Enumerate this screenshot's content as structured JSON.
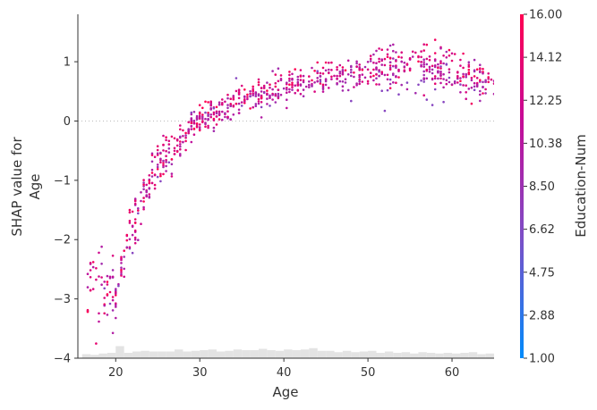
{
  "chart_data": {
    "type": "scatter",
    "title": "",
    "xlabel": "Age",
    "ylabel_line1": "SHAP value for",
    "ylabel_line2": "Age",
    "xlim": [
      15.5,
      65
    ],
    "ylim": [
      -4,
      1.8
    ],
    "xticks": [
      20,
      30,
      40,
      50,
      60
    ],
    "yticks": [
      -4,
      -3,
      -2,
      -1,
      0,
      1
    ],
    "ytick_labels": [
      "−4",
      "−3",
      "−2",
      "−1",
      "0",
      "1"
    ],
    "zero_line": true,
    "colorbar": {
      "label": "Education-Num",
      "min": 1.0,
      "max": 16.0,
      "tick_labels": [
        "1.00",
        "2.88",
        "4.75",
        "6.62",
        "8.50",
        "10.38",
        "12.25",
        "14.12",
        "16.00"
      ],
      "colors": [
        "#008bfb",
        "#7c4fc7",
        "#c70a96",
        "#ff0051"
      ]
    },
    "trend": [
      [
        16.5,
        -2.7
      ],
      [
        18,
        -2.7
      ],
      [
        19,
        -2.9
      ],
      [
        20,
        -2.95
      ],
      [
        21,
        -2.2
      ],
      [
        22,
        -1.7
      ],
      [
        23,
        -1.4
      ],
      [
        24,
        -1.0
      ],
      [
        25,
        -0.75
      ],
      [
        26,
        -0.55
      ],
      [
        27,
        -0.45
      ],
      [
        28,
        -0.25
      ],
      [
        29,
        -0.05
      ],
      [
        30,
        0.02
      ],
      [
        32,
        0.1
      ],
      [
        34,
        0.25
      ],
      [
        36,
        0.35
      ],
      [
        38,
        0.45
      ],
      [
        40,
        0.55
      ],
      [
        43,
        0.62
      ],
      [
        46,
        0.75
      ],
      [
        50,
        0.82
      ],
      [
        55,
        0.9
      ],
      [
        60,
        0.8
      ],
      [
        65,
        0.6
      ]
    ],
    "histogram": {
      "bins": [
        16,
        17,
        18,
        19,
        20,
        21,
        22,
        23,
        24,
        25,
        26,
        27,
        28,
        29,
        30,
        31,
        32,
        33,
        34,
        35,
        36,
        37,
        38,
        39,
        40,
        41,
        42,
        43,
        44,
        45,
        46,
        47,
        48,
        49,
        50,
        51,
        52,
        53,
        54,
        55,
        56,
        57,
        58,
        59,
        60,
        61,
        62,
        63,
        64
      ],
      "counts": [
        6,
        5,
        7,
        8,
        18,
        8,
        10,
        11,
        10,
        10,
        10,
        13,
        10,
        11,
        12,
        13,
        10,
        11,
        13,
        12,
        12,
        14,
        12,
        11,
        13,
        12,
        13,
        15,
        11,
        11,
        9,
        11,
        9,
        10,
        11,
        8,
        10,
        8,
        9,
        7,
        9,
        8,
        7,
        8,
        7,
        8,
        9,
        6,
        7
      ]
    },
    "hist_max": 24
  }
}
